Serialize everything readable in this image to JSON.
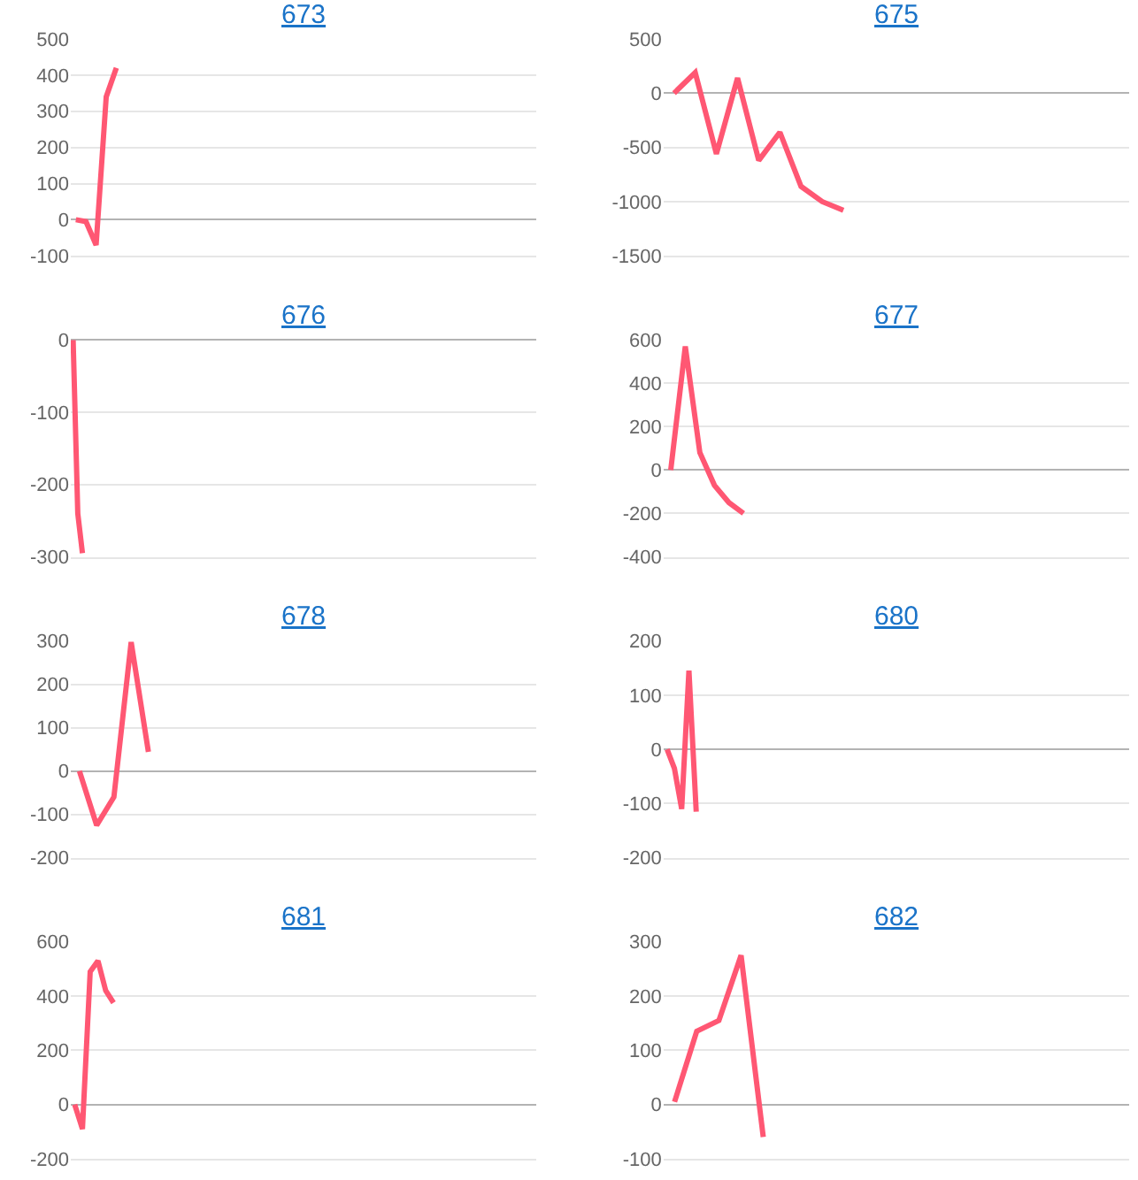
{
  "chart_data": [
    {
      "type": "line",
      "title": "673",
      "categories": [
        null,
        null,
        null,
        null,
        null,
        null,
        null,
        null,
        null,
        null,
        null,
        null,
        null,
        null,
        null,
        null,
        null,
        null,
        null,
        null,
        null,
        null,
        null,
        null,
        null,
        null,
        null,
        null,
        null,
        null,
        null,
        null,
        null,
        null,
        null,
        null,
        null,
        null,
        null,
        null,
        null,
        null,
        null,
        null,
        null,
        null
      ],
      "values": [
        0,
        -5,
        -70,
        340,
        420,
        null,
        null,
        null,
        null,
        null,
        null,
        null,
        null,
        null,
        null,
        null,
        null,
        null,
        null,
        null,
        null,
        null,
        null,
        null,
        null,
        null,
        null,
        null,
        null,
        null,
        null,
        null,
        null,
        null,
        null,
        null,
        null,
        null,
        null,
        null,
        null,
        null,
        null,
        null,
        null,
        null
      ],
      "color": "#ff5773",
      "ylim": [
        -100,
        500
      ],
      "yticks": [
        -100,
        0,
        100,
        200,
        300,
        400,
        500
      ],
      "grid": "y",
      "tick_labels": "y",
      "marker": "none",
      "line_style": "solid"
    },
    {
      "type": "line",
      "title": "675",
      "categories": [
        null,
        null,
        null,
        null,
        null,
        null,
        null,
        null,
        null,
        null,
        null,
        null,
        null,
        null,
        null,
        null,
        null,
        null,
        null,
        null,
        null,
        null
      ],
      "values": [
        0,
        190,
        -560,
        140,
        -620,
        -360,
        -860,
        -1000,
        -1080,
        null,
        null,
        null,
        null,
        null,
        null,
        null,
        null,
        null,
        null,
        null,
        null,
        null
      ],
      "color": "#ff5773",
      "ylim": [
        -1500,
        500
      ],
      "yticks": [
        -1500,
        -1000,
        -500,
        0,
        500
      ],
      "grid": "y",
      "tick_labels": "y",
      "marker": "none",
      "line_style": "solid"
    },
    {
      "type": "line",
      "title": "676",
      "categories": [
        null,
        null,
        null,
        null,
        null,
        null,
        null,
        null,
        null,
        null,
        null,
        null,
        null,
        null,
        null,
        null,
        null,
        null,
        null,
        null,
        null,
        null,
        null,
        null,
        null,
        null,
        null,
        null,
        null,
        null,
        null,
        null,
        null,
        null,
        null,
        null,
        null,
        null,
        null,
        null,
        null,
        null,
        null,
        null,
        null,
        null,
        null,
        null,
        null,
        null,
        null,
        null,
        null,
        null,
        null,
        null,
        null,
        null,
        null,
        null,
        null,
        null,
        null,
        null,
        null,
        null,
        null,
        null,
        null,
        null,
        null,
        null,
        null,
        null,
        null,
        null,
        null,
        null,
        null,
        null,
        null,
        null,
        null,
        null,
        null,
        null,
        null,
        null,
        null,
        null,
        null,
        null,
        null,
        null,
        null,
        null,
        null,
        null,
        null,
        null
      ],
      "values": [
        0,
        -240,
        -295,
        null,
        null,
        null,
        null,
        null,
        null,
        null,
        null,
        null,
        null,
        null,
        null,
        null,
        null,
        null,
        null,
        null,
        null,
        null,
        null,
        null,
        null,
        null,
        null,
        null,
        null,
        null,
        null,
        null,
        null,
        null,
        null,
        null,
        null,
        null,
        null,
        null,
        null,
        null,
        null,
        null,
        null,
        null,
        null,
        null,
        null,
        null,
        null,
        null,
        null,
        null,
        null,
        null,
        null,
        null,
        null,
        null,
        null,
        null,
        null,
        null,
        null,
        null,
        null,
        null,
        null,
        null,
        null,
        null,
        null,
        null,
        null,
        null,
        null,
        null,
        null,
        null,
        null,
        null,
        null,
        null,
        null,
        null,
        null,
        null,
        null,
        null,
        null,
        null,
        null,
        null,
        null,
        null,
        null,
        null,
        null,
        null
      ],
      "color": "#ff5773",
      "ylim": [
        -300,
        0
      ],
      "yticks": [
        -300,
        -200,
        -100,
        0
      ],
      "grid": "y",
      "tick_labels": "y",
      "marker": "none",
      "line_style": "solid"
    },
    {
      "type": "line",
      "title": "677",
      "categories": [
        null,
        null,
        null,
        null,
        null,
        null,
        null,
        null,
        null,
        null,
        null,
        null,
        null,
        null,
        null,
        null,
        null,
        null,
        null,
        null,
        null,
        null,
        null,
        null,
        null,
        null,
        null,
        null,
        null,
        null,
        null,
        null
      ],
      "values": [
        0,
        570,
        80,
        -70,
        -150,
        -200,
        null,
        null,
        null,
        null,
        null,
        null,
        null,
        null,
        null,
        null,
        null,
        null,
        null,
        null,
        null,
        null,
        null,
        null,
        null,
        null,
        null,
        null,
        null,
        null,
        null,
        null
      ],
      "color": "#ff5773",
      "ylim": [
        -400,
        600
      ],
      "yticks": [
        -400,
        -200,
        0,
        200,
        400,
        600
      ],
      "grid": "y",
      "tick_labels": "y",
      "marker": "none",
      "line_style": "solid"
    },
    {
      "type": "line",
      "title": "678",
      "categories": [
        null,
        null,
        null,
        null,
        null,
        null,
        null,
        null,
        null,
        null,
        null,
        null,
        null,
        null,
        null,
        null,
        null,
        null,
        null,
        null,
        null,
        null,
        null,
        null,
        null,
        null,
        null
      ],
      "values": [
        0,
        -125,
        -60,
        297,
        44,
        null,
        null,
        null,
        null,
        null,
        null,
        null,
        null,
        null,
        null,
        null,
        null,
        null,
        null,
        null,
        null,
        null,
        null,
        null,
        null,
        null,
        null
      ],
      "color": "#ff5773",
      "ylim": [
        -200,
        300
      ],
      "yticks": [
        -200,
        -100,
        0,
        100,
        200,
        300
      ],
      "grid": "y",
      "tick_labels": "y",
      "marker": "none",
      "line_style": "solid"
    },
    {
      "type": "line",
      "title": "680",
      "categories": [
        null,
        null,
        null,
        null,
        null,
        null,
        null,
        null,
        null,
        null,
        null,
        null,
        null,
        null,
        null,
        null,
        null,
        null,
        null,
        null,
        null,
        null,
        null,
        null,
        null,
        null,
        null,
        null,
        null,
        null,
        null,
        null,
        null,
        null,
        null,
        null,
        null,
        null,
        null,
        null,
        null,
        null,
        null,
        null,
        null,
        null,
        null,
        null,
        null,
        null,
        null,
        null,
        null,
        null,
        null,
        null,
        null,
        null,
        null,
        null,
        null,
        null,
        null,
        null
      ],
      "values": [
        0,
        -35,
        -110,
        145,
        -115,
        null,
        null,
        null,
        null,
        null,
        null,
        null,
        null,
        null,
        null,
        null,
        null,
        null,
        null,
        null,
        null,
        null,
        null,
        null,
        null,
        null,
        null,
        null,
        null,
        null,
        null,
        null,
        null,
        null,
        null,
        null,
        null,
        null,
        null,
        null,
        null,
        null,
        null,
        null,
        null,
        null,
        null,
        null,
        null,
        null,
        null,
        null,
        null,
        null,
        null,
        null,
        null,
        null,
        null,
        null,
        null,
        null,
        null,
        null
      ],
      "color": "#ff5773",
      "ylim": [
        -200,
        200
      ],
      "yticks": [
        -200,
        -100,
        0,
        100,
        200
      ],
      "grid": "y",
      "tick_labels": "y",
      "marker": "none",
      "line_style": "solid"
    },
    {
      "type": "line",
      "title": "681",
      "categories": [
        null,
        null,
        null,
        null,
        null,
        null,
        null,
        null,
        null,
        null,
        null,
        null,
        null,
        null,
        null,
        null,
        null,
        null,
        null,
        null,
        null,
        null,
        null,
        null,
        null,
        null,
        null,
        null,
        null,
        null,
        null,
        null,
        null,
        null,
        null,
        null,
        null,
        null,
        null,
        null,
        null,
        null,
        null,
        null,
        null,
        null,
        null,
        null,
        null,
        null,
        null,
        null,
        null,
        null,
        null,
        null,
        null,
        null,
        null,
        null
      ],
      "values": [
        0,
        -90,
        490,
        530,
        420,
        375,
        null,
        null,
        null,
        null,
        null,
        null,
        null,
        null,
        null,
        null,
        null,
        null,
        null,
        null,
        null,
        null,
        null,
        null,
        null,
        null,
        null,
        null,
        null,
        null,
        null,
        null,
        null,
        null,
        null,
        null,
        null,
        null,
        null,
        null,
        null,
        null,
        null,
        null,
        null,
        null,
        null,
        null,
        null,
        null,
        null,
        null,
        null,
        null,
        null,
        null,
        null,
        null,
        null,
        null
      ],
      "color": "#ff5773",
      "ylim": [
        -200,
        600
      ],
      "yticks": [
        -200,
        0,
        200,
        400,
        600
      ],
      "grid": "y",
      "tick_labels": "y",
      "marker": "none",
      "line_style": "solid"
    },
    {
      "type": "line",
      "title": "682",
      "categories": [
        null,
        null,
        null,
        null,
        null,
        null,
        null,
        null,
        null,
        null,
        null,
        null,
        null,
        null,
        null,
        null,
        null,
        null,
        null,
        null,
        null
      ],
      "values": [
        5,
        135,
        155,
        275,
        -60,
        null,
        null,
        null,
        null,
        null,
        null,
        null,
        null,
        null,
        null,
        null,
        null,
        null,
        null,
        null,
        null
      ],
      "color": "#ff5773",
      "ylim": [
        -100,
        300
      ],
      "yticks": [
        -100,
        0,
        100,
        200,
        300
      ],
      "grid": "y",
      "tick_labels": "y",
      "marker": "none",
      "line_style": "solid"
    }
  ]
}
